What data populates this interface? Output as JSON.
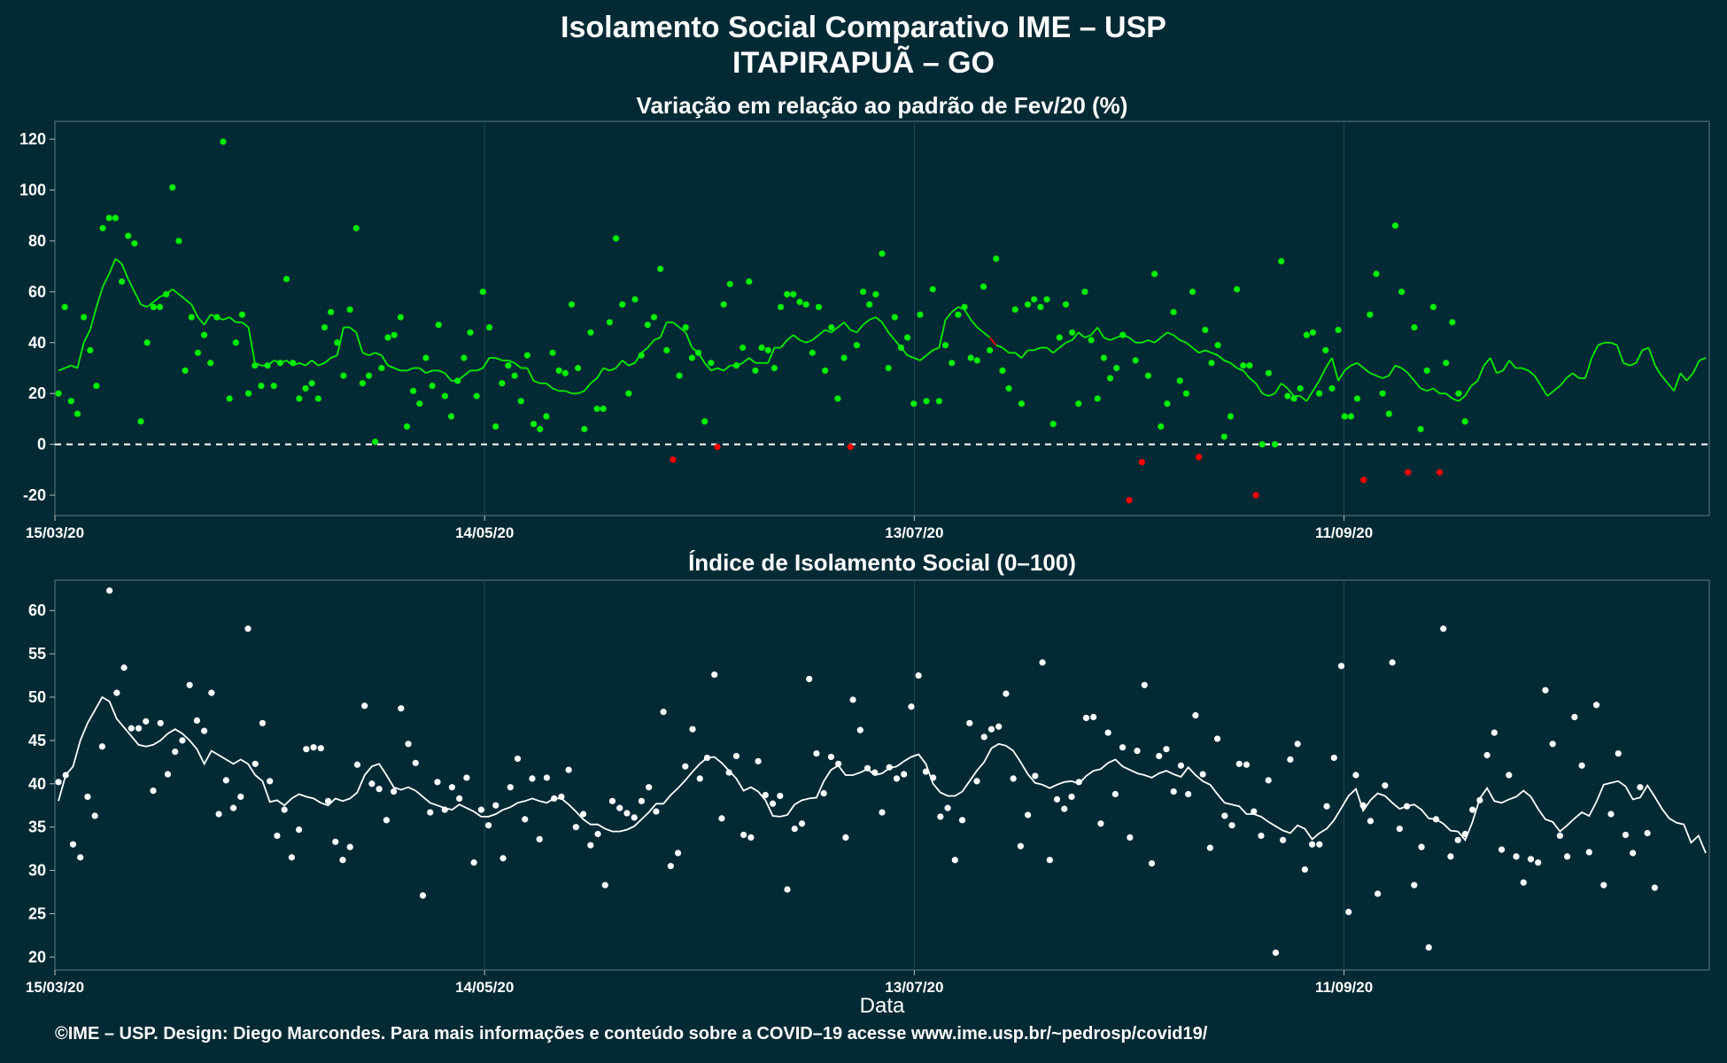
{
  "header": {
    "title": "Isolamento Social Comparativo IME – USP",
    "subtitle": "ITAPIRAPUÃ – GO"
  },
  "footer": {
    "credit": "©IME – USP. Design: Diego Marcondes. Para mais informações e conteúdo sobre a COVID–19 acesse www.ime.usp.br/~pedrosp/covid19/"
  },
  "colors": {
    "background": "#022a35",
    "positive": "#00ee00",
    "negative": "#ff0000",
    "index": "#ffffff"
  },
  "chart_data": [
    {
      "type": "scatter",
      "title": "Variação em relação ao padrão de Fev/20 (%)",
      "xlabel": "",
      "ylabel": "",
      "x_range": [
        "2020-03-15",
        "2020-11-01"
      ],
      "x_ticks": [
        "15/03/20",
        "14/05/20",
        "13/07/20",
        "11/09/20"
      ],
      "ylim": [
        -28,
        127
      ],
      "y_ticks": [
        -20,
        0,
        20,
        40,
        60,
        80,
        100,
        120
      ],
      "reference_line": 0,
      "grid": true,
      "series": [
        {
          "values": [
            20,
            54,
            17,
            12,
            50,
            37,
            23,
            85,
            89,
            89,
            64,
            82,
            79,
            9,
            40,
            54,
            54,
            59,
            101,
            80,
            29,
            50,
            36,
            43,
            32,
            50,
            119,
            18,
            40,
            51,
            20,
            31,
            23,
            31,
            23,
            32,
            65,
            32,
            18,
            22,
            24,
            18,
            46,
            52,
            40,
            27,
            53,
            85,
            24,
            27,
            1,
            30,
            42,
            43,
            50,
            7,
            21,
            16,
            34,
            23,
            47,
            19,
            11,
            25,
            34,
            44,
            19,
            60,
            46,
            7,
            24,
            31,
            27,
            17,
            35,
            8,
            6,
            11,
            36,
            29,
            28,
            55,
            30,
            6,
            44,
            14,
            14,
            48,
            81,
            55,
            20,
            57,
            35,
            47,
            50,
            69,
            37,
            -6,
            27,
            46,
            34,
            36,
            9,
            32,
            -1,
            55,
            63,
            31,
            38,
            64,
            29,
            38,
            37,
            30,
            54,
            59,
            59,
            56,
            55,
            36,
            54,
            29,
            46,
            18,
            34,
            -1,
            39,
            60,
            55,
            59,
            75,
            30,
            50,
            38,
            42,
            16,
            51,
            17,
            61,
            17,
            39,
            32,
            51,
            54,
            34,
            33,
            62,
            37,
            73,
            29,
            22,
            53,
            16,
            55,
            57,
            54,
            57,
            8,
            42,
            55,
            44,
            16,
            60,
            41,
            18,
            34,
            26,
            30,
            43,
            -22,
            33,
            -7,
            27,
            67,
            7,
            16,
            52,
            25,
            20,
            60,
            -5,
            45,
            32,
            39,
            3,
            11,
            61,
            31,
            31,
            -20,
            0,
            28,
            0,
            72,
            19,
            18,
            22,
            43,
            44,
            20,
            37,
            22,
            45,
            11,
            11,
            18,
            -14,
            51,
            67,
            20,
            12,
            86,
            60,
            -11,
            46,
            6,
            29,
            54,
            -11,
            32,
            48,
            20,
            9
          ]
        },
        {
          "values": [
            29,
            30,
            31,
            30,
            40,
            45,
            54,
            62,
            67,
            73,
            71,
            65,
            60,
            55,
            54,
            56,
            58,
            59,
            61,
            59,
            57,
            55,
            50,
            47,
            51,
            50,
            49,
            50,
            48,
            48,
            46,
            32,
            31,
            31,
            33,
            32,
            33,
            31,
            32,
            31,
            33,
            31,
            32,
            34,
            35,
            46,
            46,
            44,
            36,
            35,
            36,
            35,
            31,
            30,
            29,
            29,
            30,
            30,
            28,
            29,
            29,
            28,
            25,
            25,
            27,
            29,
            29,
            30,
            34,
            34,
            33,
            33,
            32,
            30,
            30,
            25,
            24,
            24,
            22,
            21,
            21,
            20,
            20,
            21,
            24,
            26,
            30,
            29,
            30,
            33,
            31,
            32,
            36,
            38,
            41,
            42,
            48,
            48,
            46,
            44,
            38,
            36,
            32,
            29,
            30,
            29,
            31,
            31,
            32,
            34,
            32,
            32,
            32,
            38,
            38,
            41,
            43,
            41,
            40,
            41,
            43,
            45,
            44,
            46,
            48,
            45,
            44,
            47,
            49,
            50,
            48,
            44,
            41,
            38,
            35,
            34,
            33,
            35,
            37,
            38,
            49,
            52,
            54,
            53,
            49,
            46,
            44,
            42,
            39,
            38,
            36,
            36,
            34,
            37,
            37,
            38,
            38,
            36,
            38,
            40,
            41,
            44,
            42,
            43,
            46,
            42,
            41,
            42,
            43,
            42,
            40,
            40,
            41,
            40,
            42,
            44,
            43,
            41,
            40,
            38,
            36,
            37,
            36,
            35,
            33,
            32,
            30,
            29,
            26,
            24,
            20,
            19,
            20,
            24,
            22,
            19,
            19,
            17,
            21,
            25,
            30,
            34,
            25,
            29,
            31,
            32,
            30,
            28,
            27,
            26,
            27,
            31,
            30,
            28,
            25,
            22,
            21,
            22,
            20,
            20,
            18,
            17,
            19,
            23,
            25,
            31,
            34,
            28,
            29,
            33,
            30,
            30,
            29,
            27,
            23,
            19,
            21,
            23,
            26,
            28,
            26,
            26,
            34,
            39,
            40,
            40,
            39,
            32,
            31,
            32,
            37,
            38,
            31,
            27,
            24,
            21,
            28,
            25,
            28,
            33,
            34
          ]
        }
      ]
    },
    {
      "type": "scatter",
      "title": "Índice de Isolamento Social (0–100)",
      "xlabel": "Data",
      "ylabel": "",
      "x_range": [
        "2020-03-15",
        "2020-11-01"
      ],
      "x_ticks": [
        "15/03/20",
        "14/05/20",
        "13/07/20",
        "11/09/20"
      ],
      "ylim": [
        18.5,
        63.5
      ],
      "y_ticks": [
        20,
        25,
        30,
        35,
        40,
        45,
        50,
        55,
        60
      ],
      "grid": true,
      "series": [
        {
          "values": [
            40.2,
            41.0,
            33.0,
            31.5,
            38.5,
            36.3,
            44.3,
            62.3,
            50.5,
            53.4,
            46.4,
            46.4,
            47.2,
            39.2,
            47.0,
            41.1,
            43.7,
            45.0,
            51.4,
            47.3,
            46.1,
            50.5,
            36.5,
            40.4,
            37.2,
            38.5,
            57.9,
            42.3,
            47.0,
            40.3,
            34.0,
            37.0,
            31.5,
            34.7,
            44.0,
            44.2,
            44.1,
            38.0,
            33.3,
            31.2,
            32.7,
            42.2,
            49.0,
            40.0,
            39.4,
            35.8,
            39.1,
            48.7,
            44.6,
            42.4,
            27.1,
            36.7,
            40.2,
            37.0,
            39.6,
            38.3,
            40.7,
            30.9,
            37.0,
            35.2,
            37.5,
            31.4,
            39.6,
            42.9,
            35.9,
            40.6,
            33.6,
            40.7,
            38.3,
            38.5,
            41.6,
            35.0,
            36.5,
            32.9,
            34.2,
            28.3,
            38.0,
            37.2,
            36.6,
            36.1,
            38.0,
            39.6,
            36.8,
            48.3,
            30.5,
            32.0,
            42.0,
            46.3,
            40.6,
            43.0,
            52.6,
            36.0,
            41.3,
            43.2,
            34.1,
            33.8,
            42.6,
            38.7,
            37.7,
            38.6,
            27.8,
            34.8,
            35.4,
            52.1,
            43.5,
            38.9,
            43.1,
            42.3,
            33.8,
            49.7,
            46.2,
            41.8,
            41.3,
            36.7,
            41.9,
            40.6,
            41.1,
            48.9,
            52.5,
            41.4,
            40.7,
            36.2,
            37.2,
            31.2,
            35.8,
            47.0,
            40.3,
            45.4,
            46.3,
            46.6,
            50.4,
            40.6,
            32.8,
            36.4,
            40.9,
            54.0,
            31.2,
            38.2,
            37.1,
            38.5,
            40.2,
            47.6,
            47.7,
            35.4,
            45.9,
            38.8,
            44.2,
            33.8,
            43.8,
            51.4,
            30.8,
            43.2,
            44.0,
            39.1,
            42.1,
            38.8,
            47.9,
            41.1,
            32.6,
            45.2,
            36.3,
            35.2,
            42.3,
            42.2,
            36.8,
            34.0,
            40.4,
            20.5,
            33.5,
            42.8,
            44.6,
            30.1,
            33.0,
            33.0,
            37.4,
            43.0,
            53.6,
            25.2,
            41.0,
            37.5,
            35.7,
            27.3,
            39.8,
            54.0,
            34.8,
            37.4,
            28.3,
            32.7,
            21.1,
            35.9,
            57.9,
            31.6,
            33.5,
            34.2,
            37.0,
            38.1,
            43.3,
            45.9,
            32.4,
            41.0,
            31.6,
            28.6,
            31.3,
            30.9,
            50.8,
            44.6,
            34.0,
            31.6,
            47.7,
            42.1,
            32.1,
            49.1,
            28.3,
            36.5,
            43.5,
            34.1,
            32.0,
            39.6,
            34.3,
            28.0
          ]
        },
        {
          "values": [
            38.0,
            41.0,
            42.0,
            45.0,
            47.0,
            48.5,
            50.0,
            49.5,
            47.5,
            46.5,
            45.5,
            44.5,
            44.3,
            44.5,
            45.0,
            45.8,
            46.3,
            45.8,
            45.0,
            44.0,
            42.3,
            43.8,
            43.3,
            42.8,
            42.3,
            42.8,
            42.3,
            41.0,
            40.3,
            37.9,
            38.1,
            37.5,
            38.3,
            38.8,
            38.5,
            38.3,
            37.8,
            37.5,
            38.3,
            38.0,
            38.3,
            39.0,
            41.0,
            42.0,
            42.3,
            41.0,
            39.6,
            39.3,
            39.6,
            39.2,
            38.5,
            37.8,
            37.5,
            37.2,
            37.0,
            37.6,
            37.2,
            36.8,
            36.2,
            36.2,
            36.5,
            37.0,
            37.3,
            37.8,
            38.0,
            38.3,
            38.0,
            37.8,
            38.3,
            38.3,
            37.6,
            36.8,
            35.9,
            35.3,
            35.3,
            34.8,
            34.5,
            34.5,
            34.7,
            35.1,
            35.9,
            36.7,
            37.7,
            37.7,
            38.7,
            39.5,
            40.4,
            41.4,
            42.3,
            43.0,
            43.1,
            42.4,
            41.5,
            40.6,
            39.2,
            39.6,
            39.1,
            38.1,
            36.3,
            36.2,
            36.4,
            37.6,
            38.1,
            38.3,
            38.4,
            40.3,
            41.6,
            42.1,
            41.0,
            41.0,
            41.3,
            41.7,
            41.0,
            41.2,
            41.8,
            42.0,
            42.6,
            43.1,
            43.4,
            42.3,
            40.0,
            39.0,
            38.6,
            38.6,
            39.1,
            40.3,
            41.5,
            42.5,
            44.1,
            44.6,
            44.4,
            43.8,
            42.5,
            41.1,
            40.1,
            39.9,
            39.5,
            39.9,
            40.2,
            40.3,
            40.0,
            40.9,
            41.5,
            41.7,
            42.4,
            42.8,
            42.0,
            41.6,
            41.2,
            41.0,
            40.7,
            41.2,
            41.5,
            41.1,
            40.8,
            41.9,
            41.0,
            40.3,
            39.9,
            38.8,
            37.8,
            37.6,
            37.4,
            36.5,
            36.5,
            36.2,
            35.6,
            35.1,
            34.6,
            34.3,
            35.2,
            34.8,
            33.6,
            34.3,
            34.8,
            35.8,
            37.2,
            38.6,
            39.4,
            36.9,
            38.1,
            38.9,
            38.6,
            37.8,
            37.1,
            37.4,
            37.6,
            37.0,
            36.0,
            35.9,
            35.4,
            34.6,
            34.5,
            33.5,
            35.6,
            38.3,
            39.5,
            38.0,
            37.8,
            38.2,
            38.5,
            39.2,
            38.5,
            37.1,
            35.9,
            35.6,
            34.5,
            35.2,
            36.0,
            36.7,
            36.3,
            37.9,
            39.9,
            40.1,
            40.3,
            39.7,
            38.2,
            38.4,
            39.8,
            38.5,
            37.1,
            36.0,
            35.5,
            35.3,
            33.2,
            34.0,
            32.0
          ]
        }
      ]
    }
  ]
}
